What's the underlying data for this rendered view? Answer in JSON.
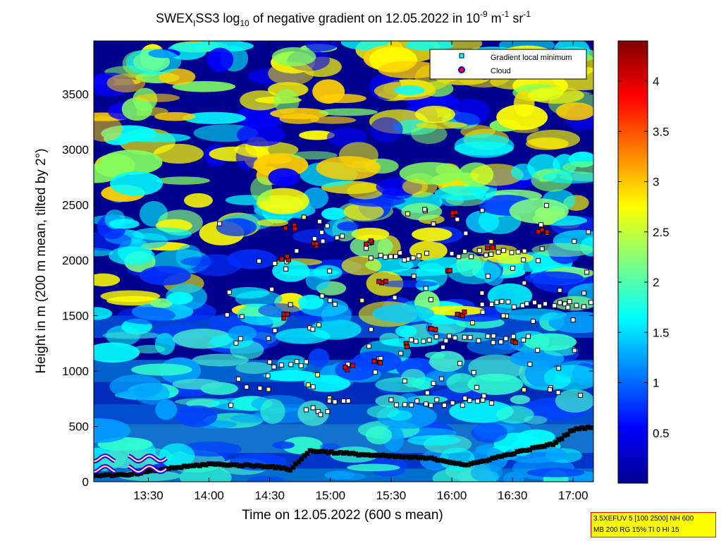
{
  "chart_data": {
    "type": "heatmap",
    "title": "SWEX_ISS3 log_10 of negative gradient on 12.05.2022 in 10^-9 m^-1 sr^-1",
    "title_parts": {
      "t1": "SWEX",
      "t1sub": "I",
      "t2": "SS3 log",
      "t2sub": "10",
      "t3": " of negative gradient on 12.05.2022 in 10",
      "t3sup": "-9",
      "t4": " m",
      "t4sup": "-1",
      "t5": " sr",
      "t5sup": "-1"
    },
    "xlabel": "Time on 12.05.2022 (600 s mean)",
    "ylabel": "Height in m (200 m mean, tilted by 2°)",
    "x_ticks": [
      "13:30",
      "14:00",
      "14:30",
      "15:00",
      "15:30",
      "16:00",
      "16:30",
      "17:00"
    ],
    "y_ticks": [
      0,
      500,
      1000,
      1500,
      2000,
      2500,
      3000,
      3500
    ],
    "ylim": [
      0,
      3980
    ],
    "xlim_minutes": [
      783,
      1030
    ],
    "colorbar": {
      "ticks": [
        "0.5",
        "1",
        "1.5",
        "2",
        "2.5",
        "3",
        "3.5",
        "4"
      ],
      "range": [
        0,
        4.4
      ]
    },
    "legend": {
      "placement": "top-right",
      "entries": [
        {
          "label": "Gradient local minimum",
          "marker": "square",
          "color": "#00ffff"
        },
        {
          "label": "Cloud",
          "marker": "circle",
          "color": "#ff0000",
          "edge": "#0000ff"
        }
      ]
    },
    "cloud_base_layer": [
      {
        "t": 783,
        "h": 60
      },
      {
        "t": 800,
        "h": 60
      },
      {
        "t": 820,
        "h": 120
      },
      {
        "t": 840,
        "h": 160
      },
      {
        "t": 870,
        "h": 140
      },
      {
        "t": 880,
        "h": 110
      },
      {
        "t": 890,
        "h": 280
      },
      {
        "t": 920,
        "h": 240
      },
      {
        "t": 950,
        "h": 210
      },
      {
        "t": 968,
        "h": 150
      },
      {
        "t": 980,
        "h": 210
      },
      {
        "t": 1000,
        "h": 300
      },
      {
        "t": 1010,
        "h": 340
      },
      {
        "t": 1020,
        "h": 470
      },
      {
        "t": 1030,
        "h": 500
      }
    ],
    "gradient_minima_layers": [
      {
        "from": 870,
        "to": 890,
        "h": 1060
      },
      {
        "from": 888,
        "to": 900,
        "h": 660
      },
      {
        "from": 900,
        "to": 910,
        "h": 750
      },
      {
        "from": 930,
        "to": 980,
        "h": 710
      },
      {
        "from": 940,
        "to": 1000,
        "h": 1290
      },
      {
        "from": 975,
        "to": 1030,
        "h": 1600
      },
      {
        "from": 920,
        "to": 950,
        "h": 2040
      },
      {
        "from": 960,
        "to": 1000,
        "h": 2060
      }
    ],
    "cloud_points": [
      {
        "t": 878,
        "h": 2020
      },
      {
        "t": 880,
        "h": 2300
      },
      {
        "t": 893,
        "h": 2150
      },
      {
        "t": 918,
        "h": 2160
      },
      {
        "t": 925,
        "h": 1820
      },
      {
        "t": 937,
        "h": 1230
      },
      {
        "t": 950,
        "h": 1370
      },
      {
        "t": 957,
        "h": 1900
      },
      {
        "t": 962,
        "h": 2420
      },
      {
        "t": 980,
        "h": 2120
      },
      {
        "t": 992,
        "h": 1250
      },
      {
        "t": 1005,
        "h": 2250
      },
      {
        "t": 877,
        "h": 1490
      },
      {
        "t": 909,
        "h": 1030
      },
      {
        "t": 923,
        "h": 1080
      },
      {
        "t": 965,
        "h": 1510
      }
    ]
  },
  "info_box": {
    "line1": "3.5XEFUV 5 [100 2500] NH 600",
    "line2": "MB 200 RG 15% TI 0 HI 15"
  }
}
